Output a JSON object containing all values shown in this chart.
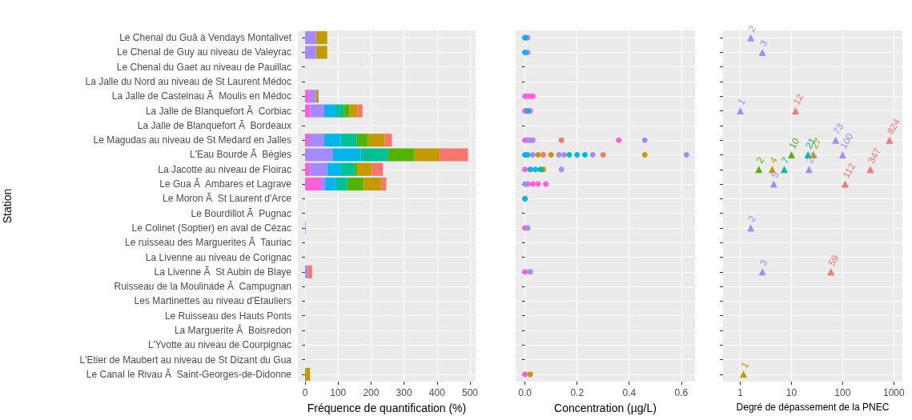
{
  "chart_data": [
    {
      "type": "bar",
      "orientation": "horizontal",
      "stacked": true,
      "ylabel": "Station",
      "xlabel": "Fréquence de quantification (%)",
      "grid": true,
      "categories": [
        "Le Chenal du Guâ à Vendays Montalivet",
        "Le Chenal de Guy au niveau de Valeyrac",
        "Le Chenal du Gaet au niveau de Pauillac",
        "La Jalle du Nord au niveau de St Laurent Médoc",
        "La Jalle de Castelnau Ã  Moulis en Médoc",
        "La Jalle de Blanquefort Ã  Corbiac",
        "La Jalle de Blanquefort Ã  Bordeaux",
        "Le Magudas au niveau de St Medard en Jalles",
        "L'Eau Bourde Ã  Bègles",
        "La Jacotte au niveau de Floirac",
        "Le Gua Ã  Ambares et Lagrave",
        "Le Moron Ã  St Laurent d'Arce",
        "Le Bourdillot Ã  Pugnac",
        "Le Colinet (Soptier) en aval de Cézac",
        "Le ruisseau des Marguerites Ã  Tauriac",
        "La Livenne au niveau de Corignac",
        "La Livenne Ã  St Aubin de Blaye",
        "Ruisseau de la Moulinade Ã  Campugnan",
        "Les Martinettes au niveau d'Etauliers",
        "Le Ruisseau des Hauts Ponts",
        "La Marguerite Ã  Boisredon",
        "L'Yvotte au niveau de Courpignac",
        "L'Etier de Maubert au niveau de St Dizant du Gua",
        "Le Canal le Rivau Ã  Saint-Georges-de-Didonne"
      ],
      "xlim": [
        -22,
        517
      ],
      "xticks": [
        0,
        100,
        200,
        300,
        400,
        500
      ],
      "series": [
        {
          "color": "#fb61d7",
          "values": [
            null,
            null,
            null,
            null,
            14,
            15,
            null,
            12,
            null,
            15,
            46,
            null,
            null,
            null,
            null,
            null,
            null,
            null,
            null,
            null,
            null,
            null,
            null,
            null
          ]
        },
        {
          "color": "#a58aff",
          "values": [
            33,
            33,
            null,
            null,
            19,
            43,
            null,
            46,
            83,
            52,
            15,
            null,
            null,
            2,
            null,
            null,
            8,
            null,
            null,
            null,
            null,
            null,
            null,
            null
          ]
        },
        {
          "color": "#00b6eb",
          "values": [
            null,
            null,
            null,
            null,
            null,
            34,
            null,
            50,
            86,
            40,
            33,
            null,
            null,
            null,
            null,
            null,
            null,
            null,
            null,
            null,
            null,
            null,
            null,
            null
          ]
        },
        {
          "color": "#00c094",
          "values": [
            null,
            null,
            null,
            null,
            null,
            25,
            null,
            49,
            83,
            43,
            34,
            null,
            null,
            null,
            null,
            null,
            null,
            null,
            null,
            null,
            null,
            null,
            null,
            null
          ]
        },
        {
          "color": "#53b400",
          "values": [
            null,
            null,
            null,
            null,
            null,
            17,
            null,
            34,
            80,
            8,
            50,
            null,
            null,
            null,
            null,
            null,
            null,
            null,
            null,
            null,
            null,
            null,
            null,
            null
          ]
        },
        {
          "color": "#c49a00",
          "values": [
            34,
            34,
            null,
            null,
            8,
            25,
            null,
            51,
            76,
            44,
            52,
            null,
            null,
            null,
            null,
            null,
            null,
            null,
            null,
            null,
            null,
            null,
            null,
            15
          ]
        },
        {
          "color": "#f8766d",
          "values": [
            null,
            null,
            null,
            null,
            null,
            15,
            null,
            21,
            86,
            34,
            16,
            null,
            null,
            null,
            null,
            null,
            13,
            null,
            null,
            null,
            null,
            null,
            null,
            null
          ]
        }
      ]
    },
    {
      "type": "scatter",
      "orientation": "horizontal",
      "marker": "circle",
      "xlabel": "Concentration (µg/L)",
      "grid": true,
      "tick_labels": "x",
      "categories": [
        null,
        null,
        null,
        null,
        null,
        null,
        null,
        null,
        null,
        null,
        null,
        null,
        null,
        null,
        null,
        null,
        null,
        null,
        null,
        null,
        null,
        null,
        null,
        null
      ],
      "xlim": [
        -0.036,
        0.653
      ],
      "xticks": [
        {
          "value": 0,
          "label": "0.0"
        },
        0.2,
        0.4,
        0.6
      ],
      "series": [
        {
          "color": "#fb61d7",
          "values": [
            null,
            null,
            null,
            null,
            0,
            0,
            null,
            0,
            null,
            0,
            0.01,
            null,
            null,
            0,
            null,
            null,
            0,
            null,
            null,
            null,
            null,
            null,
            null,
            0
          ]
        },
        {
          "color": "#fb61d7",
          "values": [
            null,
            null,
            null,
            null,
            0.01,
            0.02,
            null,
            0.36,
            null,
            null,
            0.03,
            null,
            null,
            null,
            null,
            null,
            null,
            null,
            null,
            null,
            null,
            null,
            null,
            null
          ]
        },
        {
          "color": "#fb61d7",
          "values": [
            null,
            null,
            null,
            null,
            0.02,
            null,
            null,
            null,
            null,
            null,
            0.05,
            null,
            null,
            null,
            null,
            null,
            null,
            null,
            null,
            null,
            null,
            null,
            null,
            null
          ]
        },
        {
          "color": "#fb61d7",
          "values": [
            null,
            null,
            null,
            null,
            0.03,
            null,
            null,
            null,
            null,
            null,
            0.08,
            null,
            null,
            null,
            null,
            null,
            null,
            null,
            null,
            null,
            null,
            null,
            null,
            null
          ]
        },
        {
          "color": "#a58aff",
          "values": [
            0.01,
            0.01,
            null,
            null,
            null,
            null,
            null,
            0.01,
            0.03,
            0.14,
            0,
            null,
            null,
            0.01,
            null,
            null,
            0.02,
            null,
            null,
            null,
            null,
            null,
            null,
            null
          ]
        },
        {
          "color": "#a58aff",
          "values": [
            null,
            null,
            null,
            null,
            null,
            null,
            null,
            0.02,
            0.13,
            null,
            null,
            null,
            null,
            null,
            null,
            null,
            null,
            null,
            null,
            null,
            null,
            null,
            null,
            null
          ]
        },
        {
          "color": "#a58aff",
          "values": [
            null,
            null,
            null,
            null,
            null,
            null,
            null,
            0.03,
            0.15,
            null,
            null,
            null,
            null,
            null,
            null,
            null,
            null,
            null,
            null,
            null,
            null,
            null,
            null,
            null
          ]
        },
        {
          "color": "#a58aff",
          "values": [
            null,
            null,
            null,
            null,
            null,
            null,
            null,
            0.46,
            0.26,
            null,
            null,
            null,
            null,
            null,
            null,
            null,
            null,
            null,
            null,
            null,
            null,
            null,
            null,
            null
          ]
        },
        {
          "color": "#a58aff",
          "values": [
            null,
            null,
            null,
            null,
            null,
            null,
            null,
            null,
            0.62,
            null,
            null,
            null,
            null,
            null,
            null,
            null,
            null,
            null,
            null,
            null,
            null,
            null,
            null,
            null
          ]
        },
        {
          "color": "#00b6eb",
          "values": [
            0,
            0,
            null,
            null,
            null,
            0.01,
            null,
            null,
            0,
            0.02,
            null,
            0,
            null,
            null,
            null,
            null,
            null,
            null,
            null,
            null,
            null,
            null,
            null,
            null
          ]
        },
        {
          "color": "#00b6eb",
          "values": [
            null,
            null,
            null,
            null,
            null,
            null,
            null,
            null,
            0.01,
            0.04,
            null,
            null,
            null,
            null,
            null,
            null,
            null,
            null,
            null,
            null,
            null,
            null,
            null,
            null
          ]
        },
        {
          "color": "#00b6eb",
          "values": [
            null,
            null,
            null,
            null,
            null,
            null,
            null,
            null,
            0.2,
            null,
            null,
            null,
            null,
            null,
            null,
            null,
            null,
            null,
            null,
            null,
            null,
            null,
            null,
            null
          ]
        },
        {
          "color": "#00b6eb",
          "values": [
            null,
            null,
            null,
            null,
            null,
            null,
            null,
            null,
            0.23,
            null,
            null,
            null,
            null,
            null,
            null,
            null,
            null,
            null,
            null,
            null,
            null,
            null,
            null,
            null
          ]
        },
        {
          "color": "#c49a00",
          "values": [
            null,
            null,
            null,
            null,
            null,
            null,
            null,
            null,
            0.05,
            0.07,
            null,
            null,
            null,
            null,
            null,
            null,
            null,
            null,
            null,
            null,
            null,
            null,
            null,
            0.02
          ]
        },
        {
          "color": "#c49a00",
          "values": [
            null,
            null,
            null,
            null,
            null,
            null,
            null,
            null,
            0.1,
            null,
            null,
            null,
            null,
            null,
            null,
            null,
            null,
            null,
            null,
            null,
            null,
            null,
            null,
            null
          ]
        },
        {
          "color": "#c49a00",
          "values": [
            null,
            null,
            null,
            null,
            null,
            null,
            null,
            null,
            0.46,
            null,
            null,
            null,
            null,
            null,
            null,
            null,
            null,
            null,
            null,
            null,
            null,
            null,
            null,
            null
          ]
        },
        {
          "color": "#f8766d",
          "values": [
            null,
            null,
            null,
            null,
            null,
            null,
            null,
            0.14,
            0.07,
            null,
            null,
            null,
            null,
            null,
            null,
            null,
            null,
            null,
            null,
            null,
            null,
            null,
            null,
            null
          ]
        },
        {
          "color": "#f8766d",
          "values": [
            null,
            null,
            null,
            null,
            null,
            null,
            null,
            null,
            0.3,
            null,
            null,
            null,
            null,
            null,
            null,
            null,
            null,
            null,
            null,
            null,
            null,
            null,
            null,
            null
          ]
        },
        {
          "color": "#00c094",
          "values": [
            null,
            null,
            null,
            null,
            null,
            null,
            null,
            null,
            0.17,
            0.06,
            null,
            null,
            null,
            null,
            null,
            null,
            null,
            null,
            null,
            null,
            null,
            null,
            null,
            null
          ]
        }
      ]
    },
    {
      "type": "scatter",
      "orientation": "horizontal",
      "marker": "triangle",
      "log": "x",
      "xlabel": "Degré de dépassement de la PNEC",
      "grid": true,
      "tick_labels": "x",
      "categories": [
        null,
        null,
        null,
        null,
        null,
        null,
        null,
        null,
        null,
        null,
        null,
        null,
        null,
        null,
        null,
        null,
        null,
        null,
        null,
        null,
        null,
        null,
        null,
        null
      ],
      "xlim": [
        0.46,
        1470
      ],
      "xticks": [
        1,
        10,
        100,
        1000
      ],
      "series": [
        {
          "color": "#a58aff",
          "values": [
            1.6,
            2.7,
            null,
            null,
            null,
            1,
            null,
            73,
            100,
            22,
            4.5,
            null,
            null,
            1.6,
            null,
            null,
            2.7,
            null,
            null,
            null,
            null,
            null,
            null,
            null
          ],
          "value_labels": [
            "2",
            "3",
            null,
            null,
            null,
            "1",
            null,
            "73",
            "100",
            "22",
            "5",
            null,
            null,
            "2",
            null,
            null,
            "3",
            null,
            null,
            null,
            null,
            null,
            null,
            null
          ]
        },
        {
          "color": "#f8766d",
          "values": [
            null,
            null,
            null,
            null,
            null,
            12,
            null,
            824,
            null,
            347,
            112,
            null,
            null,
            null,
            null,
            null,
            59,
            null,
            null,
            null,
            null,
            null,
            null,
            null
          ],
          "value_labels": [
            null,
            null,
            null,
            null,
            null,
            "12",
            null,
            "824",
            null,
            "347",
            "112",
            null,
            null,
            null,
            null,
            null,
            "59",
            null,
            null,
            null,
            null,
            null,
            null,
            null
          ]
        },
        {
          "color": "#53b400",
          "values": [
            null,
            null,
            null,
            null,
            null,
            null,
            null,
            null,
            10,
            2.3,
            null,
            null,
            null,
            null,
            null,
            null,
            null,
            null,
            null,
            null,
            null,
            null,
            null,
            null
          ],
          "value_labels": [
            null,
            null,
            null,
            null,
            null,
            null,
            null,
            null,
            "10",
            "2",
            null,
            null,
            null,
            null,
            null,
            null,
            null,
            null,
            null,
            null,
            null,
            null,
            null,
            null
          ]
        },
        {
          "color": "#00c094",
          "values": [
            null,
            null,
            null,
            null,
            null,
            null,
            null,
            null,
            21,
            7.2,
            null,
            null,
            null,
            null,
            null,
            null,
            null,
            null,
            null,
            null,
            null,
            null,
            null,
            null
          ],
          "value_labels": [
            null,
            null,
            null,
            null,
            null,
            null,
            null,
            null,
            "21",
            "7",
            null,
            null,
            null,
            null,
            null,
            null,
            null,
            null,
            null,
            null,
            null,
            null,
            null,
            null
          ]
        },
        {
          "color": "#c49a00",
          "values": [
            null,
            null,
            null,
            null,
            null,
            null,
            null,
            null,
            27,
            4.2,
            null,
            null,
            null,
            null,
            null,
            null,
            null,
            null,
            null,
            null,
            null,
            null,
            null,
            1.15
          ],
          "value_labels": [
            null,
            null,
            null,
            null,
            null,
            null,
            null,
            null,
            "27",
            "4",
            null,
            null,
            null,
            null,
            null,
            null,
            null,
            null,
            null,
            null,
            null,
            null,
            null,
            "1"
          ]
        }
      ]
    }
  ]
}
